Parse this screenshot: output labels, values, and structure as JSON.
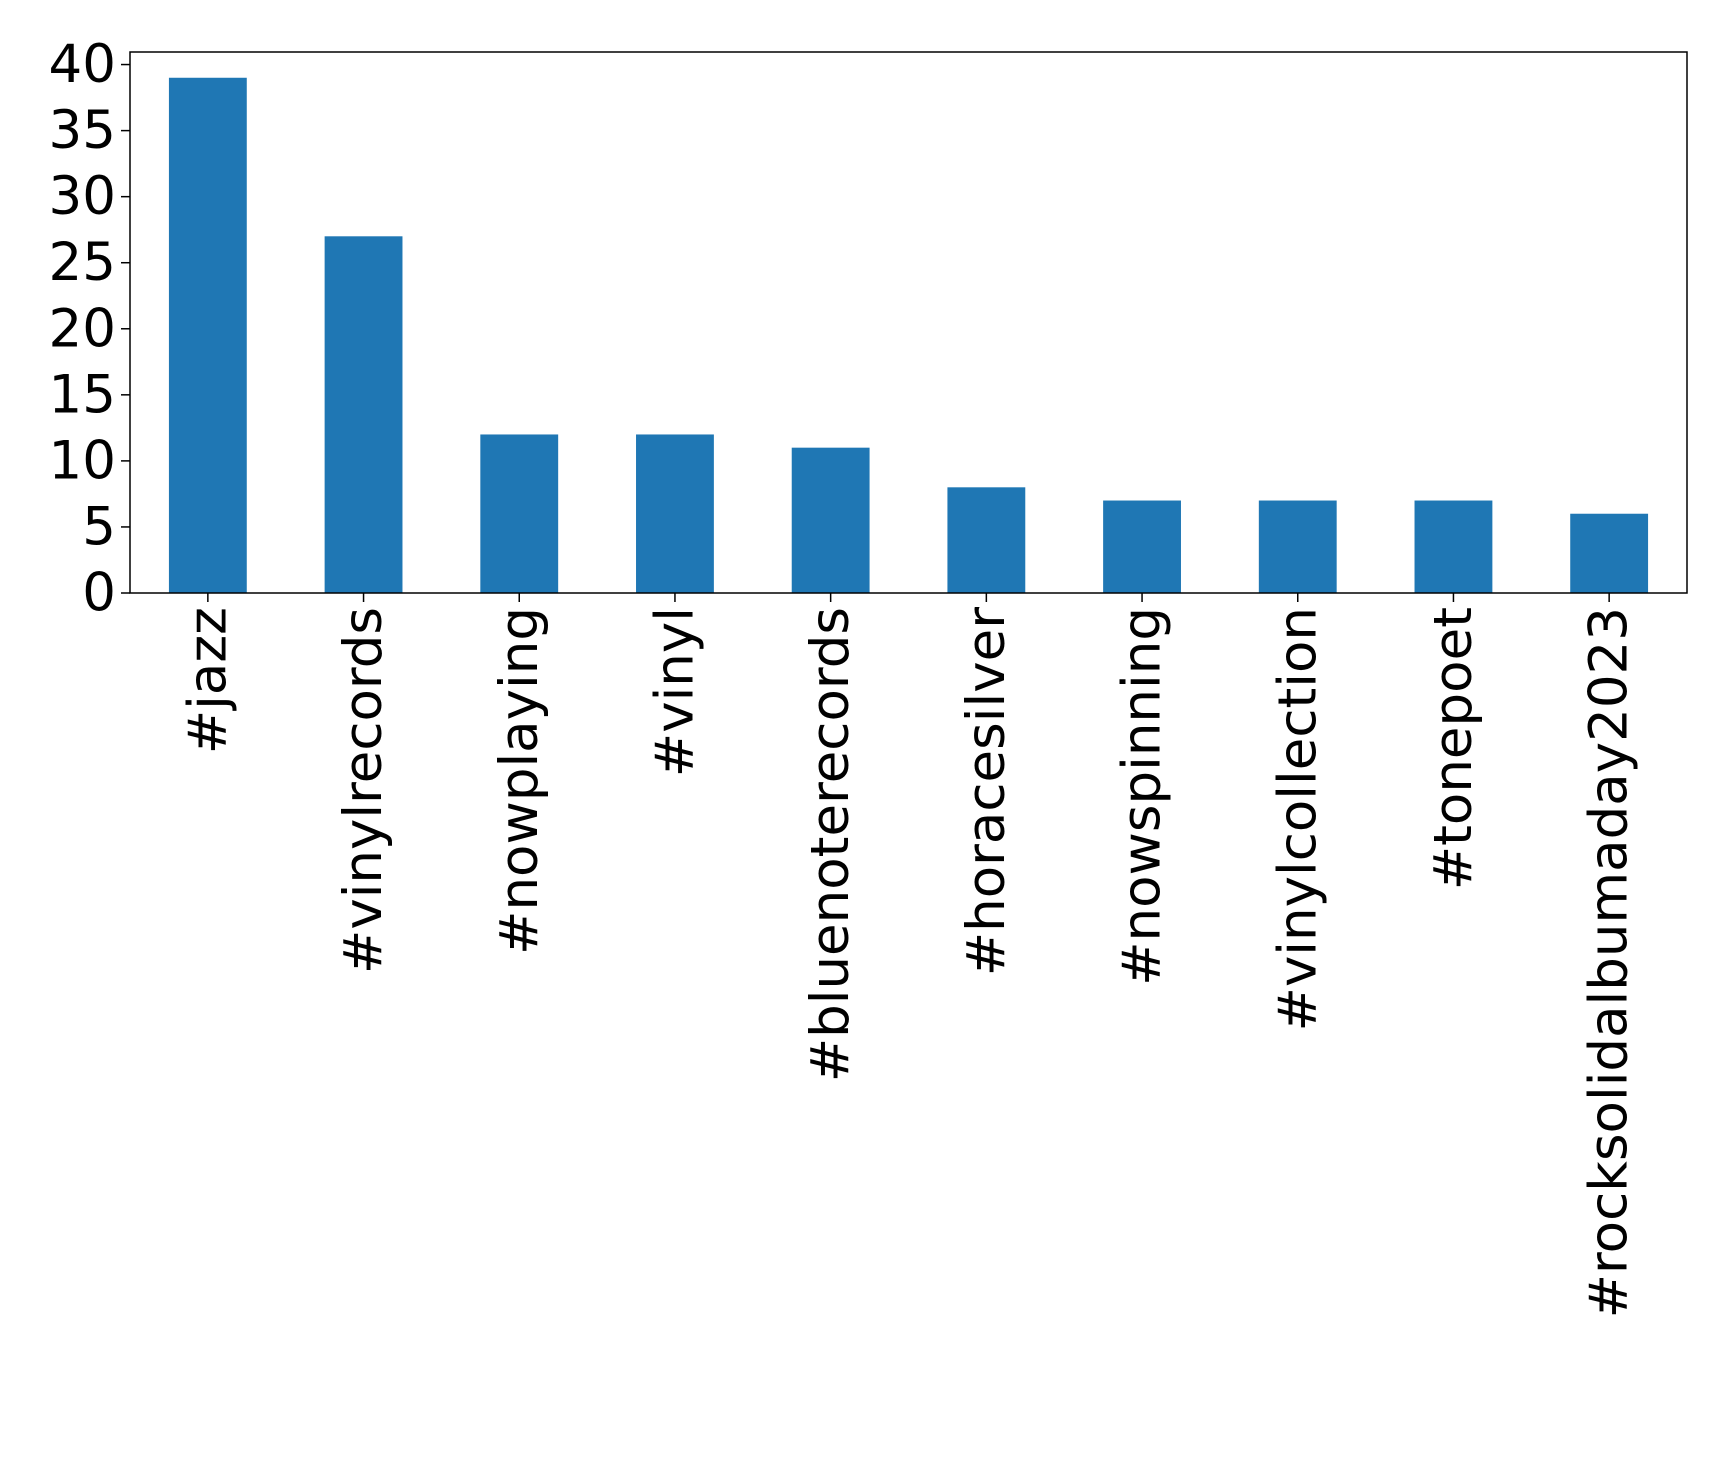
{
  "chart_data": {
    "type": "bar",
    "categories": [
      "#jazz",
      "#vinylrecords",
      "#nowplaying",
      "#vinyl",
      "#bluenoterecords",
      "#horacesilver",
      "#nowspinning",
      "#vinylcollection",
      "#tonepoet",
      "#rocksolidalbumaday2023"
    ],
    "values": [
      39,
      27,
      12,
      12,
      11,
      8,
      7,
      7,
      7,
      6
    ],
    "color": "#1f77b4",
    "ylim": [
      0,
      40.95
    ],
    "yticks": [
      0,
      5,
      10,
      15,
      20,
      25,
      30,
      35,
      40
    ],
    "grid": false
  }
}
